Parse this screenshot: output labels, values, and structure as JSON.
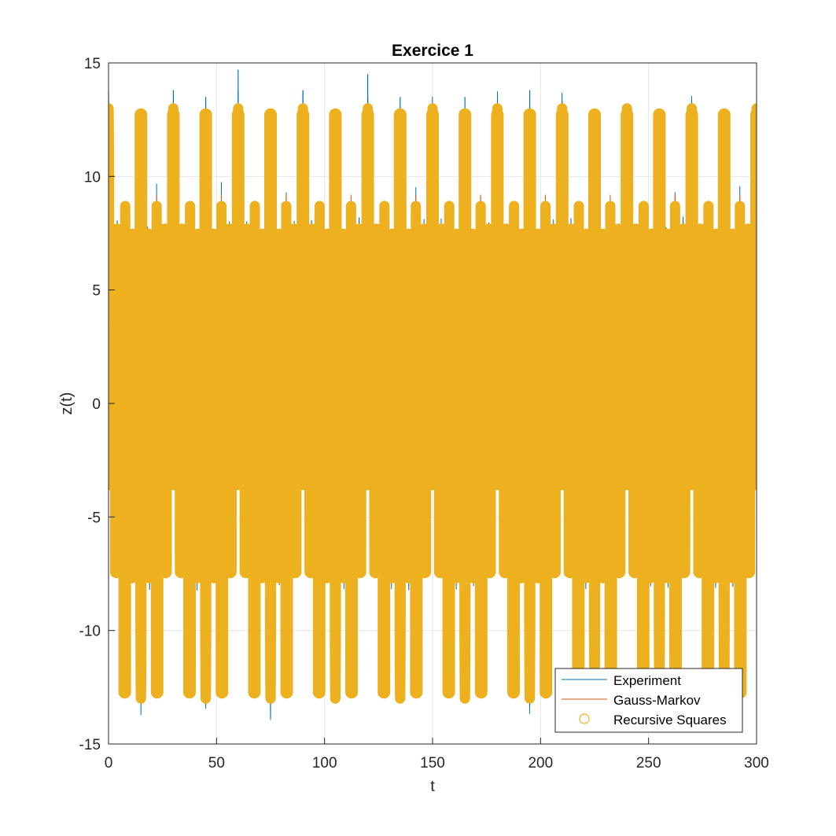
{
  "chart_data": {
    "type": "line",
    "title": "Exercice 1",
    "xlabel": "t",
    "ylabel": "z(t)",
    "xlim": [
      0,
      300
    ],
    "ylim": [
      -15,
      15
    ],
    "xticks": [
      0,
      50,
      100,
      150,
      200,
      250,
      300
    ],
    "yticks": [
      -15,
      -10,
      -5,
      0,
      5,
      10,
      15
    ],
    "xtick_labels": [
      "0",
      "50",
      "100",
      "150",
      "200",
      "250",
      "300"
    ],
    "ytick_labels": [
      "-15",
      "-10",
      "-5",
      "0",
      "5",
      "10",
      "15"
    ],
    "grid": true,
    "legend_position": "bottom-right",
    "legend": [
      {
        "label": "Experiment",
        "marker": "line",
        "color": "#0072BD"
      },
      {
        "label": "Gauss-Markov",
        "marker": "line",
        "color": "#D95319"
      },
      {
        "label": "Recursive Squares",
        "marker": "circle",
        "color": "#EDB120"
      }
    ],
    "series": [
      {
        "name": "Experiment",
        "color": "#0072BD",
        "style": "thin line",
        "signal": "periodic oscillation, about 0.5 cycle per unit t, noisy peaks",
        "period_of_large_peaks": 15,
        "spike_peaks": [
          {
            "x": 30,
            "y": 13.8
          },
          {
            "x": 45,
            "y": 13.5
          },
          {
            "x": 60,
            "y": 14.7
          },
          {
            "x": 90,
            "y": 13.8
          },
          {
            "x": 120,
            "y": 14.5
          },
          {
            "x": 135,
            "y": 13.5
          },
          {
            "x": 165,
            "y": 13.5
          },
          {
            "x": 195,
            "y": 13.8
          },
          {
            "x": 210,
            "y": 13.3
          },
          {
            "x": 255,
            "y": 10.6
          }
        ]
      },
      {
        "name": "Gauss-Markov",
        "color": "#D95319",
        "style": "thin line (hidden beneath Recursive Squares)",
        "signal": "same model fit as Recursive Squares"
      },
      {
        "name": "Recursive Squares",
        "color": "#EDB120",
        "style": "dense circle markers",
        "signal": "periodic oscillation repeating every 15 units of t",
        "period": 15,
        "main_peak_max": 13,
        "main_peak_min": -13,
        "secondary_peak_max": 7.7,
        "secondary_peak_min": -7.7,
        "band_max": 3.6,
        "band_min": -3.6,
        "upper_main_peak_times": [
          15,
          30,
          45,
          60,
          75,
          90,
          105,
          120,
          135,
          150,
          165,
          180,
          195,
          210,
          225,
          240,
          255,
          270,
          285,
          300
        ],
        "lower_main_peak_times": [
          7.5,
          22.5,
          37.5,
          52.5,
          67.5,
          82.5,
          97.5,
          112.5,
          127.5,
          142.5,
          157.5,
          172.5,
          187.5,
          202.5,
          217.5,
          232.5,
          247.5,
          262.5,
          277.5,
          292.5
        ]
      }
    ]
  }
}
